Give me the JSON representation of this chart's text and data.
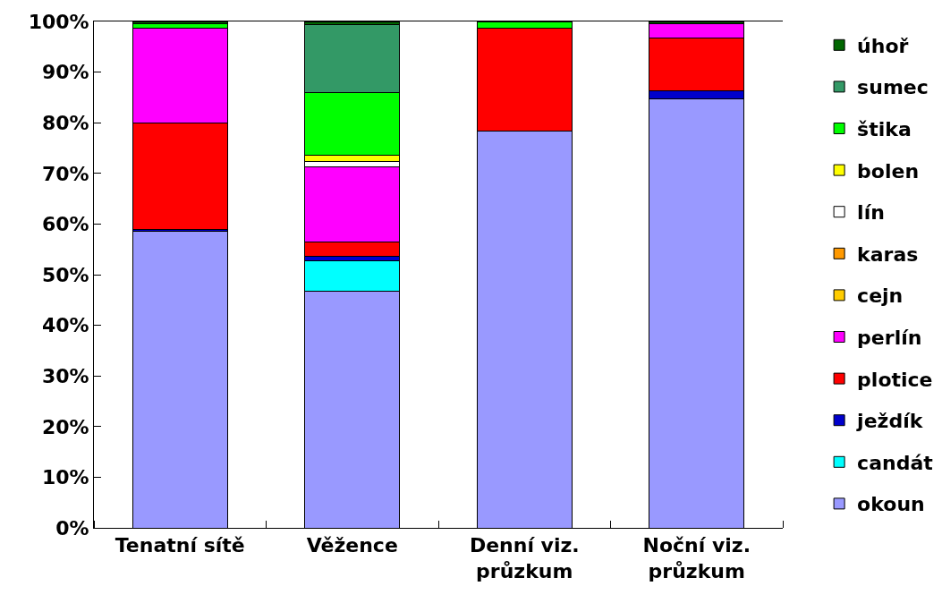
{
  "chart_data": {
    "type": "bar",
    "stacked": true,
    "legend": "right",
    "categories": [
      "Tenatní sítě",
      "Věžence",
      "Denní viz. průzkum",
      "Noční viz. průzkum"
    ],
    "ylim": [
      0,
      100
    ],
    "yticks": [
      {
        "value": 0,
        "label": "0%"
      },
      {
        "value": 10,
        "label": "10%"
      },
      {
        "value": 20,
        "label": "20%"
      },
      {
        "value": 30,
        "label": "30%"
      },
      {
        "value": 40,
        "label": "40%"
      },
      {
        "value": 50,
        "label": "50%"
      },
      {
        "value": 60,
        "label": "60%"
      },
      {
        "value": 70,
        "label": "70%"
      },
      {
        "value": 80,
        "label": "80%"
      },
      {
        "value": 90,
        "label": "90%"
      },
      {
        "value": 100,
        "label": "100%"
      }
    ],
    "series": [
      {
        "name": "okoun",
        "color": "#9999ff",
        "values": [
          58.5,
          46.7,
          78.3,
          84.7
        ]
      },
      {
        "name": "candát",
        "color": "#00ffff",
        "values": [
          null,
          6.1,
          null,
          null
        ]
      },
      {
        "name": "ježdík",
        "color": "#0000cc",
        "values": [
          0.5,
          0.9,
          null,
          1.6
        ]
      },
      {
        "name": "plotice",
        "color": "#ff0000",
        "values": [
          21.0,
          2.8,
          20.3,
          10.4
        ]
      },
      {
        "name": "perlín",
        "color": "#ff00ff",
        "values": [
          18.6,
          14.8,
          null,
          2.8
        ]
      },
      {
        "name": "cejn",
        "color": "#ffcc00",
        "values": [
          null,
          null,
          null,
          null
        ]
      },
      {
        "name": "karas",
        "color": "#ff9900",
        "values": [
          null,
          null,
          null,
          null
        ]
      },
      {
        "name": "lín",
        "color": "#ffffff",
        "values": [
          null,
          1.1,
          null,
          null
        ]
      },
      {
        "name": "bolen",
        "color": "#ffff00",
        "values": [
          null,
          1.2,
          null,
          null
        ]
      },
      {
        "name": "štika",
        "color": "#00ff00",
        "values": [
          0.9,
          12.3,
          1.4,
          null
        ]
      },
      {
        "name": "sumec",
        "color": "#339966",
        "values": [
          null,
          13.4,
          null,
          null
        ]
      },
      {
        "name": "úhoř",
        "color": "#006600",
        "values": [
          0.5,
          0.7,
          null,
          0.5
        ]
      }
    ]
  }
}
